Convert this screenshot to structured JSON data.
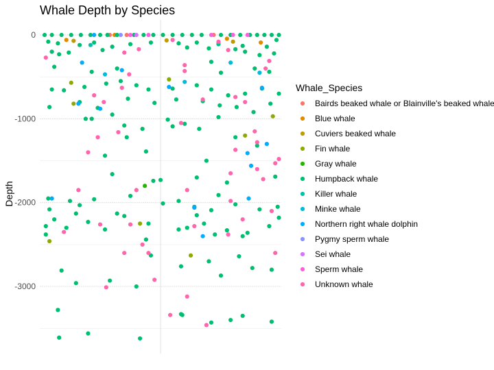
{
  "chart_data": {
    "type": "scatter",
    "title": "Whale Depth by Species",
    "xlabel": "",
    "ylabel": "Depth",
    "ylim": [
      -3800,
      180
    ],
    "yticks": [
      0,
      -1000,
      -2000,
      -3000
    ],
    "ytick_labels": [
      "0",
      "-1000",
      "-2000",
      "-3000"
    ],
    "xlim": [
      -1,
      1
    ],
    "grid": true,
    "legend_position": "right",
    "legend_title": "Whale_Species",
    "series": [
      {
        "name": "Bairds beaked whale or Blainville's beaked whale",
        "color": "#F8766D",
        "points": [
          [
            -0.42,
            0
          ],
          [
            -0.28,
            0
          ],
          [
            0.44,
            0
          ]
        ]
      },
      {
        "name": "Blue whale",
        "color": "#E18A00",
        "points": [
          [
            -0.78,
            -60
          ],
          [
            -0.38,
            0
          ],
          [
            0.55,
            -45
          ],
          [
            0.83,
            -90
          ]
        ]
      },
      {
        "name": "Cuviers beaked whale",
        "color": "#BE9C00",
        "points": [
          [
            -0.72,
            -70
          ],
          [
            0.05,
            -65
          ],
          [
            0.6,
            -80
          ]
        ]
      },
      {
        "name": "Fin whale",
        "color": "#8CAB00",
        "points": [
          [
            -0.74,
            -570
          ],
          [
            -0.72,
            -820
          ],
          [
            0.07,
            -530
          ],
          [
            0.7,
            -1200
          ],
          [
            0.93,
            -970
          ],
          [
            -0.92,
            -2460
          ],
          [
            -0.17,
            -2250
          ],
          [
            0.25,
            -2630
          ]
        ]
      },
      {
        "name": "Gray whale",
        "color": "#24B700",
        "points": [
          [
            -0.13,
            -1800
          ]
        ]
      },
      {
        "name": "Humpback whale",
        "color": "#00BE70",
        "points": [
          [
            -0.96,
            0
          ],
          [
            -0.9,
            0
          ],
          [
            -0.82,
            0
          ],
          [
            -0.74,
            0
          ],
          [
            -0.66,
            0
          ],
          [
            -0.58,
            0
          ],
          [
            -0.5,
            0
          ],
          [
            -0.44,
            0
          ],
          [
            -0.36,
            0
          ],
          [
            -0.22,
            0
          ],
          [
            -0.14,
            0
          ],
          [
            -0.06,
            0
          ],
          [
            0.02,
            0
          ],
          [
            0.1,
            0
          ],
          [
            0.18,
            0
          ],
          [
            0.26,
            0
          ],
          [
            0.34,
            0
          ],
          [
            0.5,
            0
          ],
          [
            0.58,
            0
          ],
          [
            0.66,
            0
          ],
          [
            0.74,
            0
          ],
          [
            0.8,
            0
          ],
          [
            0.86,
            0
          ],
          [
            0.92,
            0
          ],
          [
            0.98,
            0
          ],
          [
            -0.93,
            -80
          ],
          [
            -0.85,
            -100
          ],
          [
            -0.67,
            -120
          ],
          [
            -0.55,
            -90
          ],
          [
            -0.4,
            -140
          ],
          [
            -0.25,
            -110
          ],
          [
            -0.08,
            -90
          ],
          [
            0.15,
            -100
          ],
          [
            0.3,
            -90
          ],
          [
            0.48,
            -110
          ],
          [
            0.68,
            -130
          ],
          [
            0.88,
            -140
          ],
          [
            0.96,
            -60
          ],
          [
            -0.9,
            -200
          ],
          [
            -0.84,
            -230
          ],
          [
            -0.76,
            -210
          ],
          [
            -0.48,
            -180
          ],
          [
            0.22,
            -150
          ],
          [
            0.4,
            -160
          ],
          [
            0.62,
            -170
          ],
          [
            0.7,
            -200
          ],
          [
            0.82,
            -240
          ],
          [
            0.94,
            -220
          ],
          [
            -0.88,
            -380
          ],
          [
            -0.57,
            -440
          ],
          [
            -0.36,
            -400
          ],
          [
            0.42,
            -320
          ],
          [
            0.5,
            -450
          ],
          [
            0.78,
            -400
          ],
          [
            0.9,
            -440
          ],
          [
            -0.9,
            -650
          ],
          [
            -0.8,
            -660
          ],
          [
            -0.63,
            -620
          ],
          [
            -0.45,
            -580
          ],
          [
            -0.33,
            -550
          ],
          [
            -0.2,
            -600
          ],
          [
            -0.1,
            -650
          ],
          [
            0.1,
            -640
          ],
          [
            0.3,
            -600
          ],
          [
            0.42,
            -650
          ],
          [
            0.56,
            -720
          ],
          [
            0.7,
            -700
          ],
          [
            0.84,
            -640
          ],
          [
            0.98,
            -700
          ],
          [
            -0.92,
            -860
          ],
          [
            -0.67,
            -800
          ],
          [
            -0.52,
            -870
          ],
          [
            -0.27,
            -760
          ],
          [
            -0.05,
            -810
          ],
          [
            0.13,
            -770
          ],
          [
            0.35,
            -790
          ],
          [
            0.49,
            -840
          ],
          [
            0.63,
            -860
          ],
          [
            0.77,
            -920
          ],
          [
            0.91,
            -820
          ],
          [
            -0.57,
            -1000
          ],
          [
            -0.4,
            -950
          ],
          [
            -0.3,
            -1080
          ],
          [
            -0.15,
            -1120
          ],
          [
            0.06,
            -1010
          ],
          [
            0.32,
            -1120
          ],
          [
            0.48,
            -980
          ],
          [
            -0.28,
            -1220
          ],
          [
            -0.12,
            -1390
          ],
          [
            -0.46,
            -1440
          ],
          [
            0.62,
            -1220
          ],
          [
            0.8,
            -1320
          ],
          [
            0.38,
            -1500
          ],
          [
            -0.4,
            -1660
          ],
          [
            0.0,
            -1730
          ],
          [
            -0.06,
            -1740
          ],
          [
            0.3,
            -1700
          ],
          [
            0.55,
            -1760
          ],
          [
            0.95,
            -1690
          ],
          [
            -0.93,
            -1950
          ],
          [
            -0.75,
            -1980
          ],
          [
            -0.67,
            -2030
          ],
          [
            -0.55,
            -1960
          ],
          [
            -0.25,
            -1920
          ],
          [
            0.02,
            -2010
          ],
          [
            0.15,
            -1980
          ],
          [
            0.28,
            -2050
          ],
          [
            0.48,
            -1910
          ],
          [
            0.62,
            -2020
          ],
          [
            0.82,
            -2080
          ],
          [
            0.97,
            -2050
          ],
          [
            -0.95,
            -2280
          ],
          [
            -0.88,
            -2200
          ],
          [
            -0.78,
            -2300
          ],
          [
            -0.6,
            -2230
          ],
          [
            -0.46,
            -2320
          ],
          [
            -0.3,
            -2160
          ],
          [
            -0.1,
            -2250
          ],
          [
            0.22,
            -2300
          ],
          [
            0.36,
            -2250
          ],
          [
            0.55,
            -2330
          ],
          [
            0.72,
            -2360
          ],
          [
            0.9,
            -2280
          ],
          [
            0.98,
            -2180
          ],
          [
            -0.92,
            -2080
          ],
          [
            -0.7,
            -2130
          ],
          [
            -0.36,
            -2130
          ],
          [
            0.3,
            -2150
          ],
          [
            0.42,
            -2090
          ],
          [
            -0.12,
            -2440
          ],
          [
            -0.95,
            -2380
          ],
          [
            0.68,
            -2400
          ],
          [
            0.45,
            -2380
          ],
          [
            0.15,
            -2320
          ],
          [
            -0.08,
            -2630
          ],
          [
            0.17,
            -2760
          ],
          [
            0.4,
            -2700
          ],
          [
            0.65,
            -2640
          ],
          [
            0.92,
            -2800
          ],
          [
            -0.82,
            -2810
          ],
          [
            -0.7,
            -2960
          ],
          [
            -0.42,
            -2930
          ],
          [
            -0.2,
            -3000
          ],
          [
            0.5,
            -2870
          ],
          [
            0.76,
            -2780
          ],
          [
            -0.85,
            -3280
          ],
          [
            0.17,
            -3330
          ],
          [
            0.18,
            -3340
          ],
          [
            0.42,
            -3430
          ],
          [
            0.58,
            -3400
          ],
          [
            0.68,
            -3350
          ],
          [
            0.92,
            -3420
          ],
          [
            -0.84,
            -3610
          ],
          [
            -0.6,
            -3560
          ],
          [
            -0.17,
            -3620
          ],
          [
            0.1,
            -1090
          ],
          [
            0.2,
            -1060
          ],
          [
            -0.62,
            -1000
          ]
        ]
      },
      {
        "name": "Killer whale",
        "color": "#00C1AB",
        "points": [
          [
            -0.58,
            -120
          ],
          [
            0.48,
            -90
          ]
        ]
      },
      {
        "name": "Minke whale",
        "color": "#00BBDA",
        "points": [
          [
            0.58,
            -330
          ],
          [
            0.82,
            -450
          ],
          [
            0.2,
            -560
          ],
          [
            -0.46,
            -470
          ]
        ]
      },
      {
        "name": "Northern right whale dolphin",
        "color": "#00ACFC",
        "points": [
          [
            -0.55,
            0
          ],
          [
            -0.65,
            -330
          ],
          [
            -0.32,
            -420
          ],
          [
            -0.68,
            -820
          ],
          [
            -0.5,
            -880
          ],
          [
            0.07,
            -620
          ],
          [
            0.84,
            -630
          ],
          [
            0.72,
            -1410
          ],
          [
            0.75,
            -1560
          ],
          [
            0.88,
            -1300
          ],
          [
            0.73,
            -1950
          ],
          [
            0.28,
            -2060
          ],
          [
            0.35,
            -2400
          ],
          [
            -0.9,
            -1950
          ]
        ]
      },
      {
        "name": "Pygmy sperm whale",
        "color": "#8B93FF",
        "points": [
          [
            -0.33,
            0
          ]
        ]
      },
      {
        "name": "Sei whale",
        "color": "#D575FE",
        "points": [
          [
            -0.2,
            0
          ]
        ]
      },
      {
        "name": "Sperm whale",
        "color": "#F962DD",
        "points": [
          [
            -0.25,
            0
          ],
          [
            -0.1,
            0
          ],
          [
            0.42,
            0
          ],
          [
            0.6,
            0
          ],
          [
            0.72,
            0
          ]
        ]
      },
      {
        "name": "Unknown whale",
        "color": "#FF65AC",
        "points": [
          [
            -0.95,
            -270
          ],
          [
            -0.3,
            -210
          ],
          [
            -0.18,
            -170
          ],
          [
            0.1,
            -60
          ],
          [
            0.48,
            -80
          ],
          [
            0.56,
            -180
          ],
          [
            0.9,
            -310
          ],
          [
            0.2,
            -430
          ],
          [
            -0.26,
            -470
          ],
          [
            0.2,
            -360
          ],
          [
            0.87,
            -400
          ],
          [
            -0.55,
            -720
          ],
          [
            -0.32,
            -630
          ],
          [
            -0.47,
            -800
          ],
          [
            0.35,
            -770
          ],
          [
            0.62,
            -740
          ],
          [
            0.7,
            -800
          ],
          [
            -0.35,
            -1160
          ],
          [
            0.17,
            -1050
          ],
          [
            0.78,
            -1150
          ],
          [
            0.8,
            -1280
          ],
          [
            0.98,
            -1480
          ],
          [
            0.95,
            -1530
          ],
          [
            -0.52,
            -1220
          ],
          [
            -0.6,
            -1400
          ],
          [
            0.62,
            -1370
          ],
          [
            0.8,
            -1600
          ],
          [
            0.58,
            -1650
          ],
          [
            0.85,
            -1720
          ],
          [
            -0.68,
            -1850
          ],
          [
            -0.2,
            -1850
          ],
          [
            0.22,
            -1850
          ],
          [
            0.58,
            -1980
          ],
          [
            0.92,
            -2100
          ],
          [
            0.68,
            -2200
          ],
          [
            -0.8,
            -2350
          ],
          [
            -0.5,
            -2260
          ],
          [
            -0.25,
            -2260
          ],
          [
            0.28,
            -2280
          ],
          [
            0.56,
            -2380
          ],
          [
            -0.3,
            -2600
          ],
          [
            -0.1,
            -2600
          ],
          [
            0.95,
            -2600
          ],
          [
            -0.05,
            -2920
          ],
          [
            -0.45,
            -3010
          ],
          [
            0.22,
            -3120
          ],
          [
            0.08,
            -3340
          ],
          [
            0.38,
            -3460
          ],
          [
            -0.15,
            -2500
          ]
        ]
      }
    ]
  }
}
